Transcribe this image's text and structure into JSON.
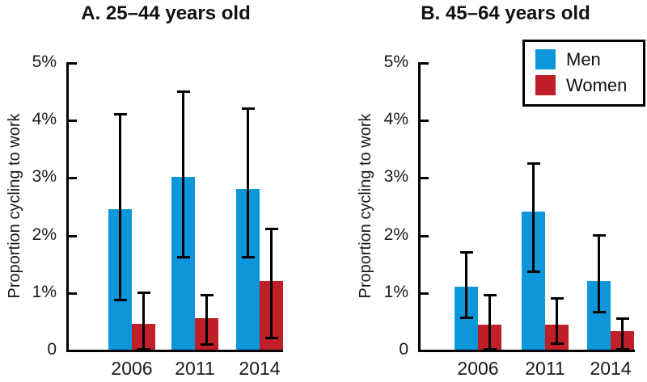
{
  "figure": {
    "legend": {
      "items": [
        {
          "label": "Men",
          "color": "#0d96d9"
        },
        {
          "label": "Women",
          "color": "#c01f28"
        }
      ]
    }
  },
  "chart_data": [
    {
      "type": "bar",
      "title": "A. 25–44 years old",
      "ylabel": "Proportion cycling to work",
      "xlabel": "",
      "categories": [
        "2006",
        "2011",
        "2014"
      ],
      "yticks": [
        "0",
        "1%",
        "2%",
        "3%",
        "4%",
        "5%"
      ],
      "ylim": [
        0,
        5
      ],
      "grid": false,
      "legend_position": "none",
      "series": [
        {
          "name": "Men",
          "color": "#0d96d9",
          "values": [
            2.45,
            3.0,
            2.8
          ],
          "error_low": [
            0.85,
            1.6,
            1.6
          ],
          "error_high": [
            4.1,
            4.5,
            4.2
          ]
        },
        {
          "name": "Women",
          "color": "#c01f28",
          "values": [
            0.45,
            0.55,
            1.2
          ],
          "error_low": [
            0.0,
            0.08,
            0.2
          ],
          "error_high": [
            1.0,
            0.95,
            2.1
          ]
        }
      ]
    },
    {
      "type": "bar",
      "title": "B. 45–64 years old",
      "ylabel": "Proportion cycling to work",
      "xlabel": "",
      "categories": [
        "2006",
        "2011",
        "2014"
      ],
      "yticks": [
        "0",
        "1%",
        "2%",
        "3%",
        "4%",
        "5%"
      ],
      "ylim": [
        0,
        5
      ],
      "grid": false,
      "legend_position": "top-right",
      "series": [
        {
          "name": "Men",
          "color": "#0d96d9",
          "values": [
            1.1,
            2.4,
            1.2
          ],
          "error_low": [
            0.55,
            1.35,
            0.65
          ],
          "error_high": [
            1.7,
            3.25,
            2.0
          ]
        },
        {
          "name": "Women",
          "color": "#c01f28",
          "values": [
            0.43,
            0.43,
            0.33
          ],
          "error_low": [
            0.0,
            0.1,
            0.0
          ],
          "error_high": [
            0.95,
            0.9,
            0.55
          ]
        }
      ]
    }
  ]
}
